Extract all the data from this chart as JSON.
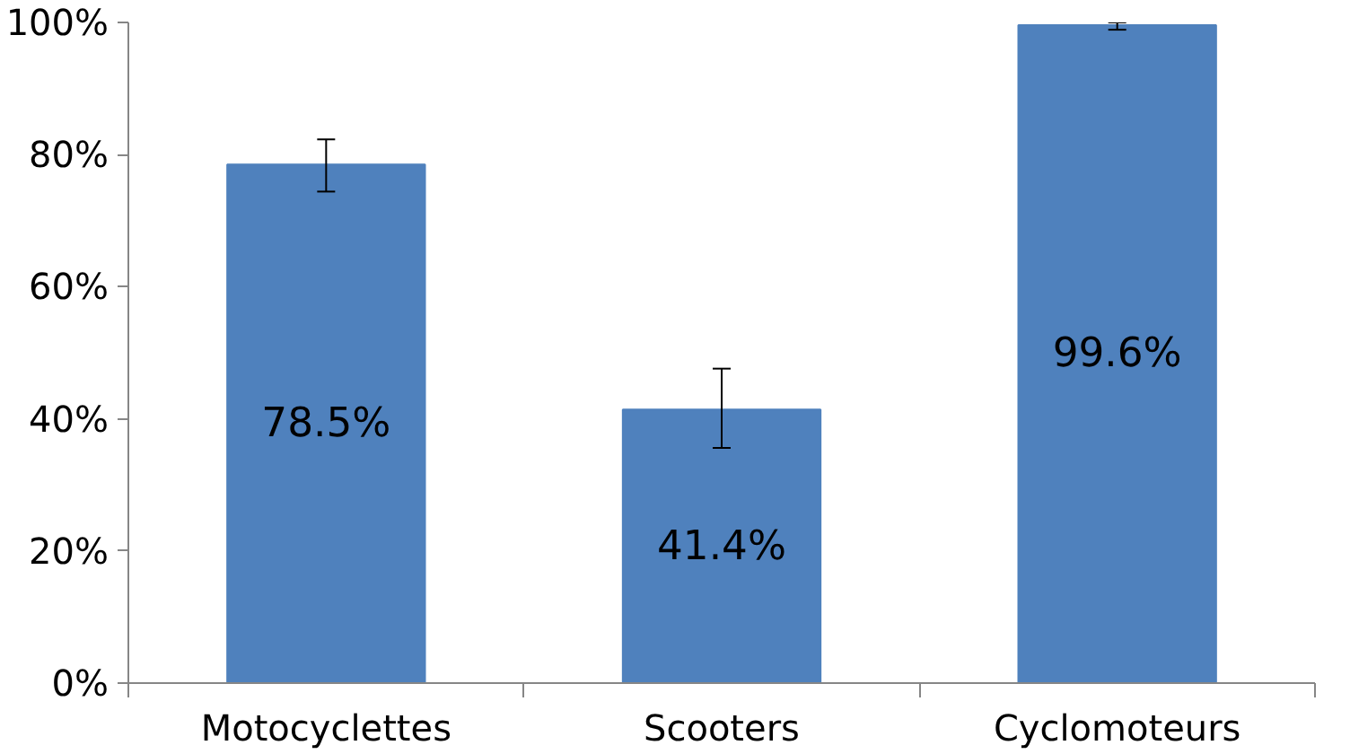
{
  "chart_data": {
    "type": "bar",
    "categories": [
      "Motocyclettes",
      "Scooters",
      "Cyclomoteurs"
    ],
    "values": [
      78.5,
      41.4,
      99.6
    ],
    "color": "#4f81bd",
    "errors": [
      [
        74.4,
        82.3
      ],
      [
        35.6,
        47.6
      ],
      [
        98.9,
        100
      ]
    ],
    "value_labels": [
      "78.5%",
      "41.4%",
      "99.6%"
    ],
    "ylim": [
      0,
      100
    ],
    "yticks": [
      {
        "value": 0,
        "label": "0%"
      },
      {
        "value": 20,
        "label": "20%"
      },
      {
        "value": 40,
        "label": "40%"
      },
      {
        "value": 60,
        "label": "60%"
      },
      {
        "value": 80,
        "label": "80%"
      },
      {
        "value": 100,
        "label": "100%"
      }
    ],
    "grid": false
  }
}
